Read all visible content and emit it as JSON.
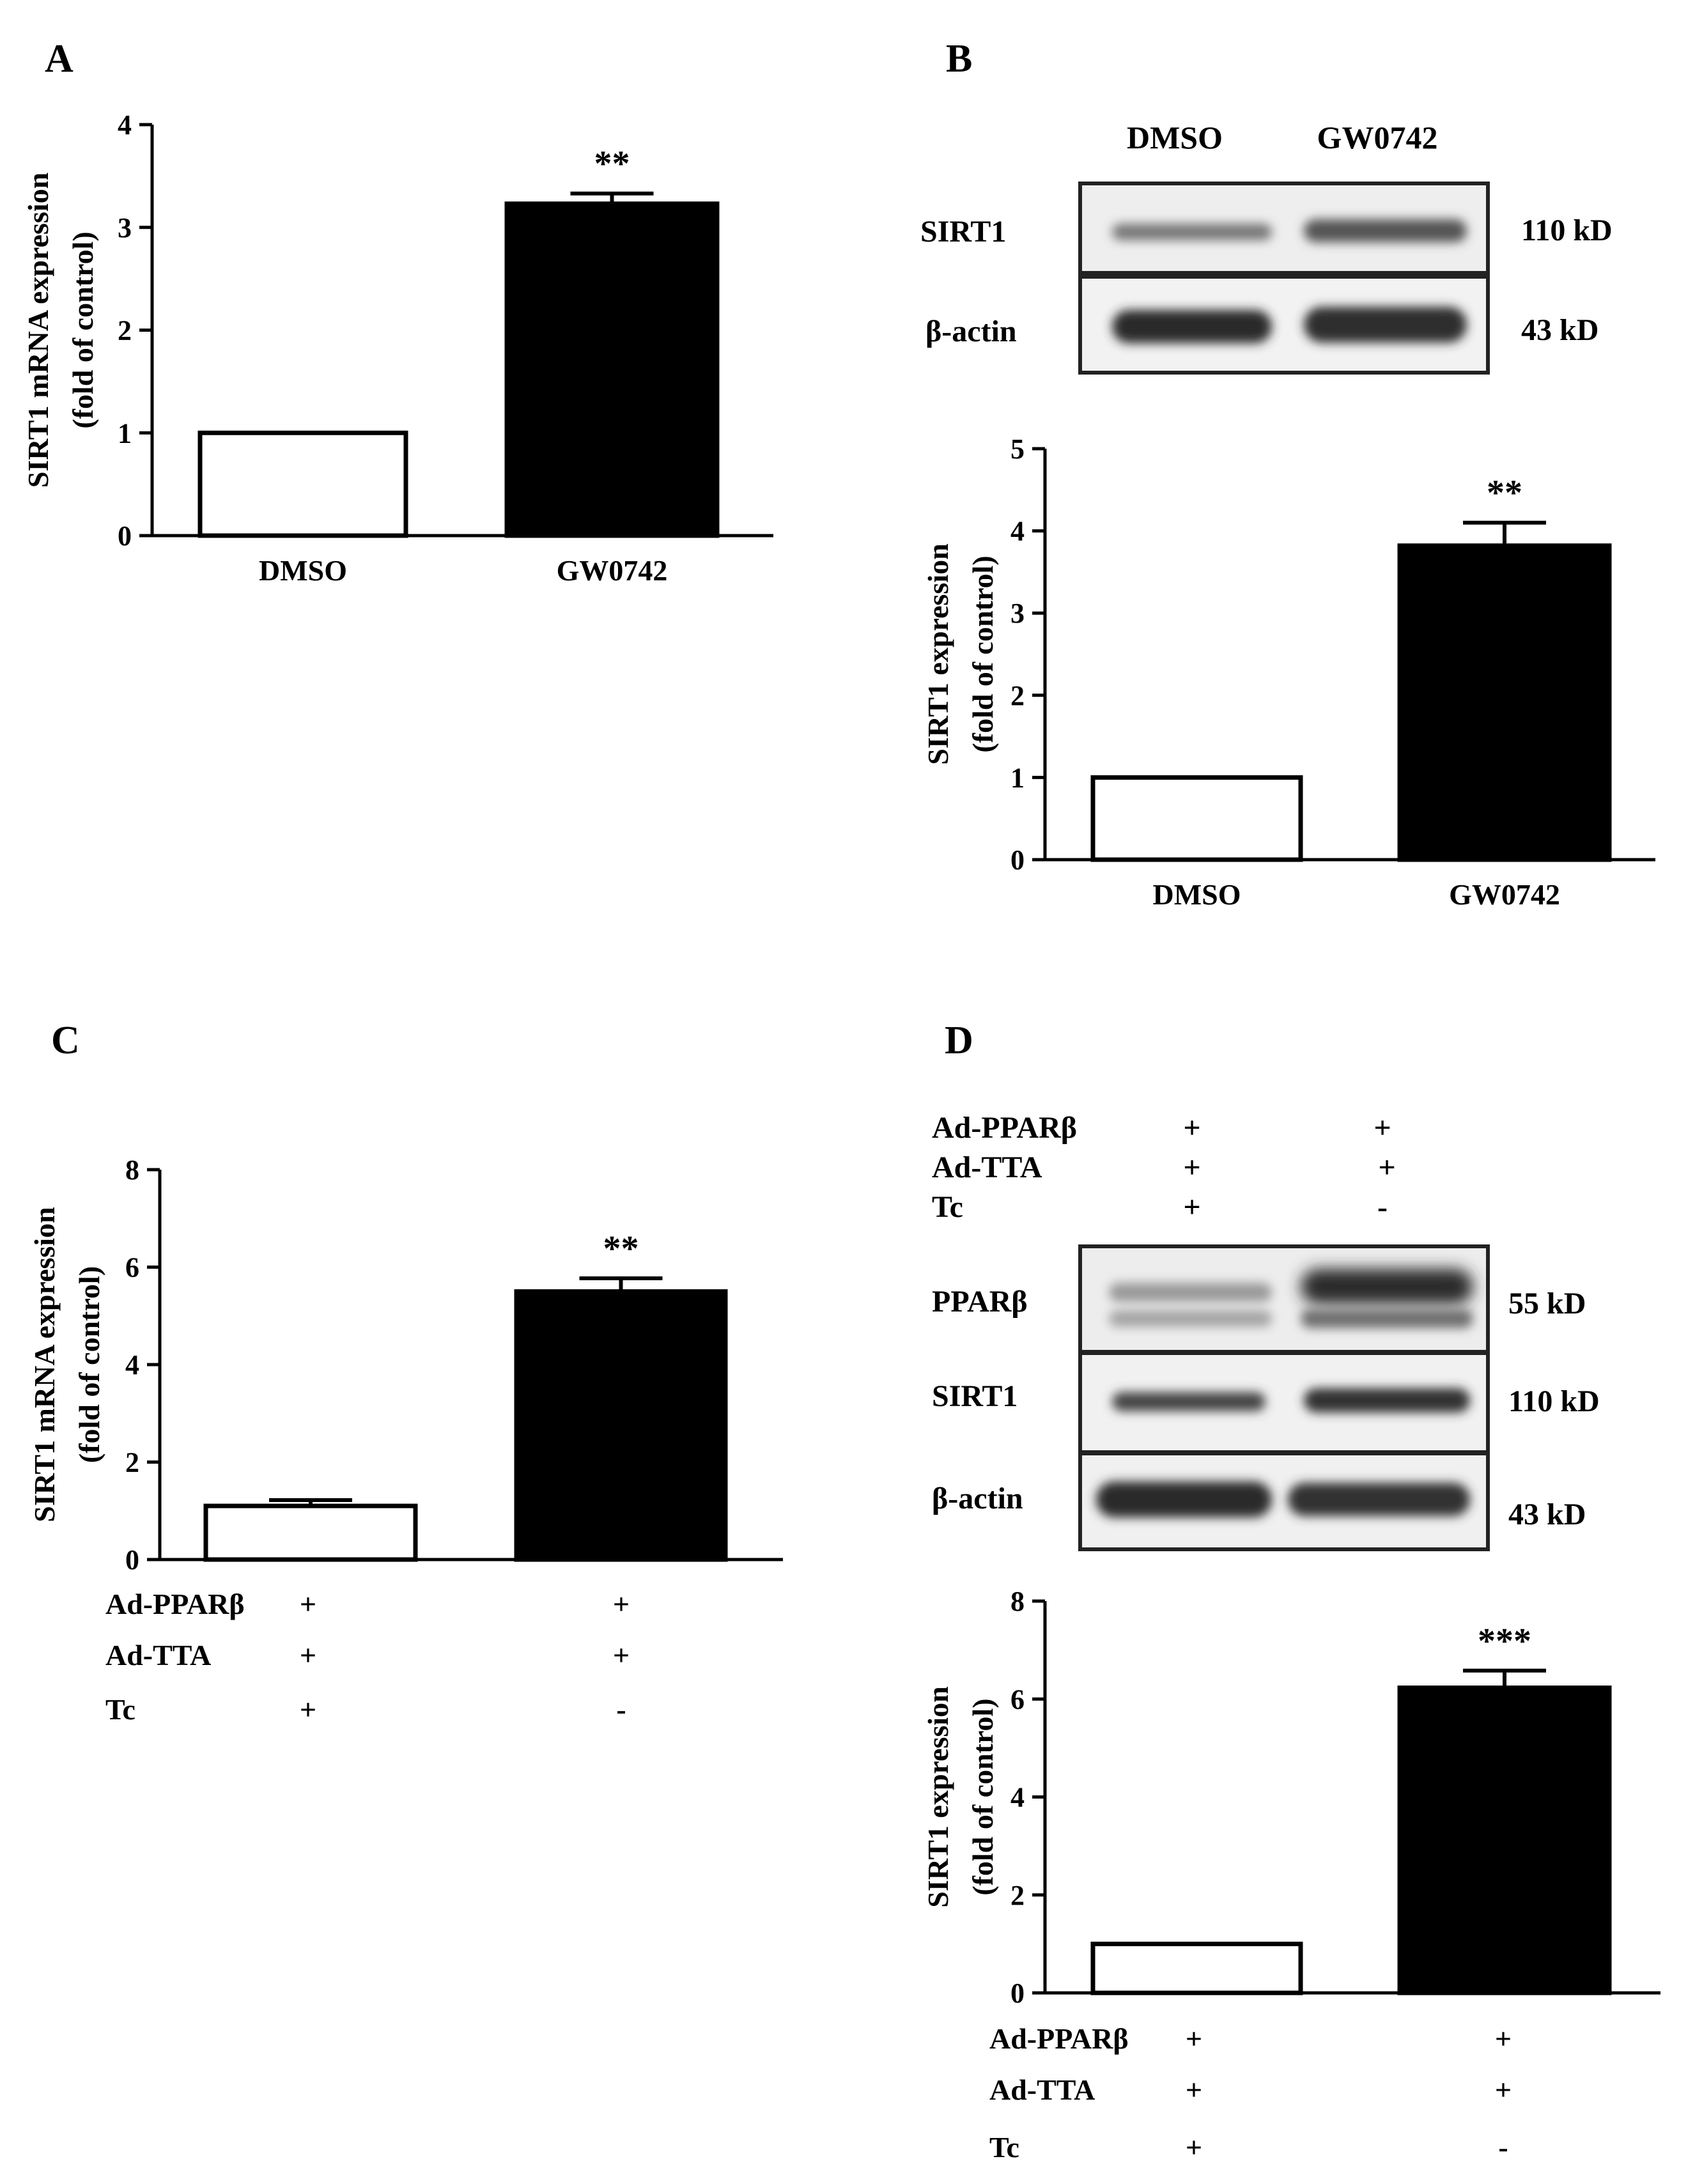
{
  "panels": {
    "a": {
      "letter": "A"
    },
    "b": {
      "letter": "B",
      "blot": {
        "lanes": [
          "DMSO",
          "GW0742"
        ],
        "rows": [
          {
            "label": "SIRT1",
            "size": "110 kD"
          },
          {
            "label": "β-actin",
            "size": "43 kD"
          }
        ]
      }
    },
    "c": {
      "letter": "C"
    },
    "d": {
      "letter": "D",
      "conditions": [
        {
          "label": "Ad-PPARβ",
          "values": [
            "+",
            "+"
          ]
        },
        {
          "label": "Ad-TTA",
          "values": [
            "+",
            "+"
          ]
        },
        {
          "label": "Tc",
          "values": [
            "+",
            "-"
          ]
        }
      ],
      "blot": {
        "rows": [
          {
            "label": "PPARβ",
            "size": "55 kD"
          },
          {
            "label": "SIRT1",
            "size": "110 kD"
          },
          {
            "label": "β-actin",
            "size": "43 kD"
          }
        ]
      }
    }
  },
  "chart_data": [
    {
      "panel": "A",
      "type": "bar",
      "categories": [
        "DMSO",
        "GW0742"
      ],
      "values": [
        1.0,
        3.23
      ],
      "errors": [
        0,
        0.1
      ],
      "significance": [
        "",
        "**"
      ],
      "ylabel": "SIRT1 mRNA expression",
      "ylabel2": "(fold of control)",
      "ylim": [
        0,
        4
      ],
      "yticks": [
        0,
        1,
        2,
        3,
        4
      ],
      "bar_colors": [
        "#ffffff",
        "#000000"
      ]
    },
    {
      "panel": "B",
      "type": "bar",
      "categories": [
        "DMSO",
        "GW0742"
      ],
      "values": [
        1.0,
        3.82
      ],
      "errors": [
        0,
        0.28
      ],
      "significance": [
        "",
        "**"
      ],
      "ylabel": "SIRT1 expression",
      "ylabel2": "(fold of control)",
      "ylim": [
        0,
        5
      ],
      "yticks": [
        0,
        1,
        2,
        3,
        4,
        5
      ],
      "bar_colors": [
        "#ffffff",
        "#000000"
      ]
    },
    {
      "panel": "C",
      "type": "bar",
      "categories": [
        "",
        ""
      ],
      "values": [
        1.1,
        5.5
      ],
      "errors": [
        0.12,
        0.27
      ],
      "significance": [
        "",
        "**"
      ],
      "ylabel": "SIRT1 mRNA expression",
      "ylabel2": "(fold of control)",
      "ylim": [
        0,
        8
      ],
      "yticks": [
        0,
        2,
        4,
        6,
        8
      ],
      "bar_colors": [
        "#ffffff",
        "#000000"
      ],
      "conditions": [
        {
          "label": "Ad-PPARβ",
          "values": [
            "+",
            "+"
          ]
        },
        {
          "label": "Ad-TTA",
          "values": [
            "+",
            "+"
          ]
        },
        {
          "label": "Tc",
          "values": [
            "+",
            "-"
          ]
        }
      ]
    },
    {
      "panel": "D",
      "type": "bar",
      "categories": [
        "",
        ""
      ],
      "values": [
        1.0,
        6.23
      ],
      "errors": [
        0,
        0.35
      ],
      "significance": [
        "",
        "***"
      ],
      "ylabel": "SIRT1 expression",
      "ylabel2": "(fold of control)",
      "ylim": [
        0,
        8
      ],
      "yticks": [
        0,
        2,
        4,
        6,
        8
      ],
      "bar_colors": [
        "#ffffff",
        "#000000"
      ],
      "conditions": [
        {
          "label": "Ad-PPARβ",
          "values": [
            "+",
            "+"
          ]
        },
        {
          "label": "Ad-TTA",
          "values": [
            "+",
            "+"
          ]
        },
        {
          "label": "Tc",
          "values": [
            "+",
            "-"
          ]
        }
      ]
    }
  ]
}
